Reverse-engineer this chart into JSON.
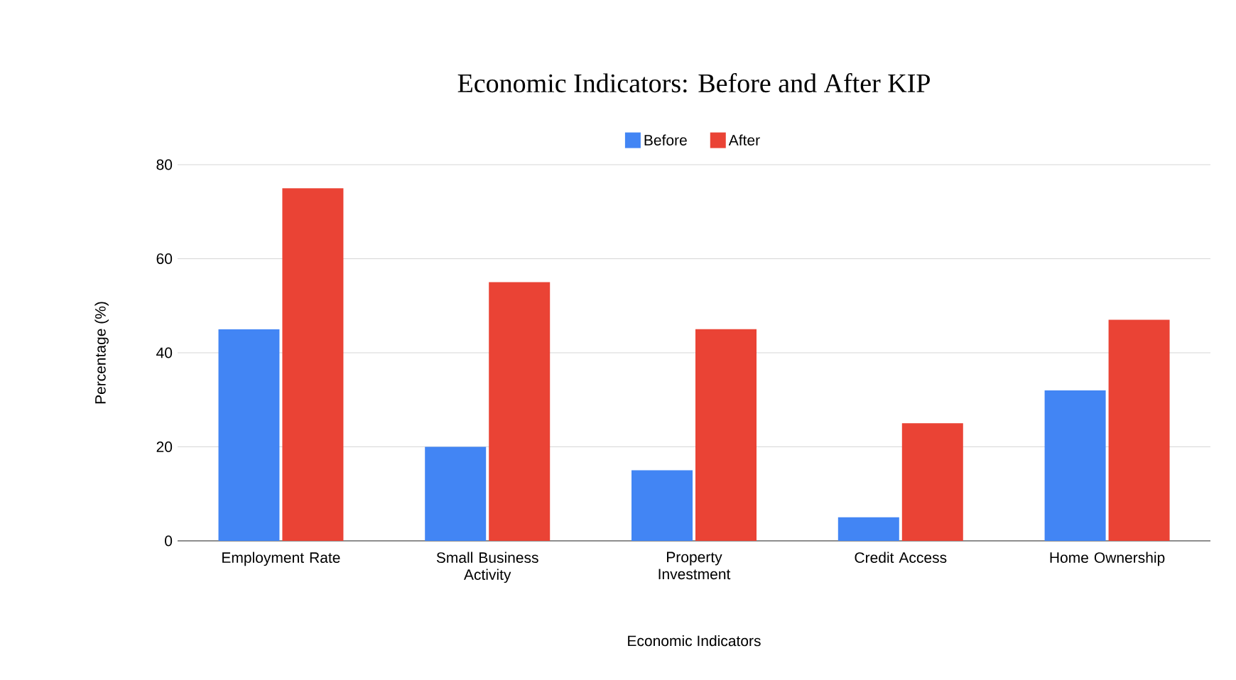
{
  "chart_data": {
    "type": "bar",
    "title": "Economic Indicators: Before and After KIP",
    "xlabel": "Economic Indicators",
    "ylabel": "Percentage (%)",
    "categories": [
      "Employment Rate",
      "Small Business Activity",
      "Property Investment",
      "Credit Access",
      "Home Ownership"
    ],
    "series": [
      {
        "name": "Before",
        "color": "#4285f4",
        "values": [
          45,
          20,
          15,
          5,
          32
        ]
      },
      {
        "name": "After",
        "color": "#ea4335",
        "values": [
          75,
          55,
          45,
          25,
          47
        ]
      }
    ],
    "ylim": [
      0,
      80
    ],
    "yticks": [
      0,
      20,
      40,
      60,
      80
    ],
    "grid": "y",
    "legend": "top"
  }
}
